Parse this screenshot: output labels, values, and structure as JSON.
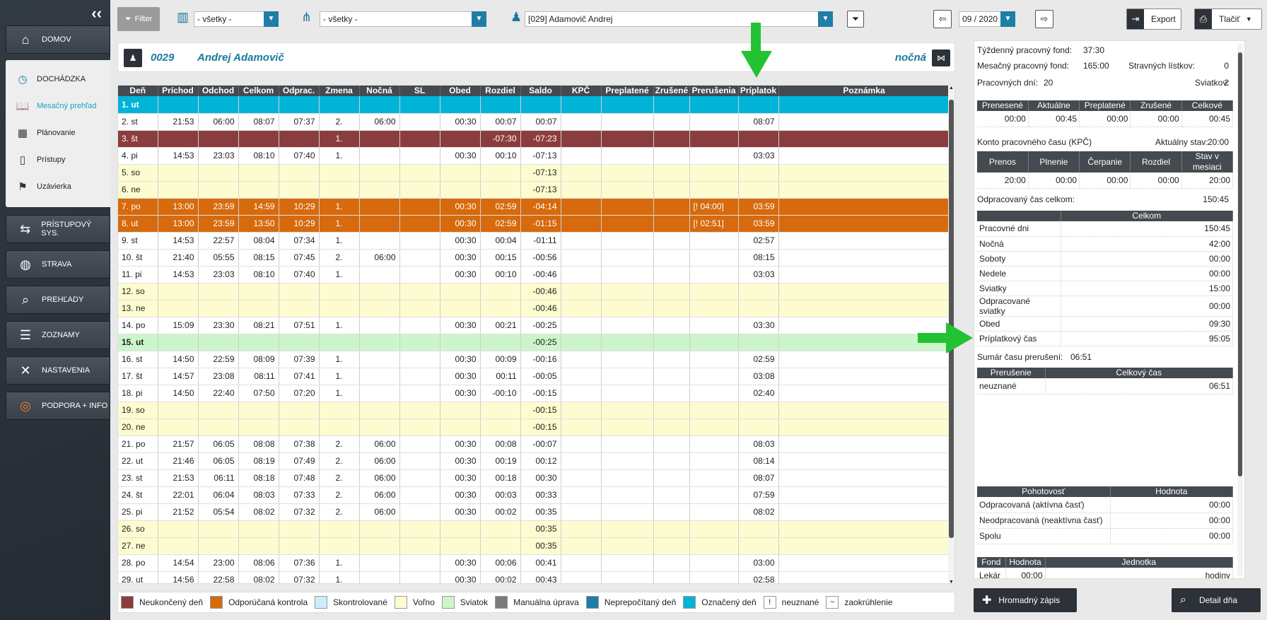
{
  "sidebar": {
    "nav": [
      {
        "label": "DOMOV",
        "icon": "home-icon"
      },
      {
        "label": "DOCHÁDZKA",
        "icon": "clock-icon"
      },
      {
        "label": "PRÍSTUPOVÝ SYS.",
        "icon": "handshake-icon"
      },
      {
        "label": "STRAVA",
        "icon": "plate-icon"
      },
      {
        "label": "PREHĽADY",
        "icon": "book-search-icon"
      },
      {
        "label": "ZOZNAMY",
        "icon": "list-icon"
      },
      {
        "label": "NASTAVENIA",
        "icon": "tools-icon"
      },
      {
        "label": "PODPORA + INFO",
        "icon": "lifebuoy-icon"
      }
    ],
    "sub": [
      {
        "label": "Mesačný prehľad",
        "icon": "book-icon"
      },
      {
        "label": "Plánovanie",
        "icon": "calendar-icon"
      },
      {
        "label": "Prístupy",
        "icon": "door-icon"
      },
      {
        "label": "Uzávierka",
        "icon": "flag-icon"
      }
    ]
  },
  "toolbar": {
    "filter_label": "Filter",
    "select1": "- všetky -",
    "select2": "- všetky -",
    "employee": "[029] Adamovič Andrej",
    "period": "09 / 2020",
    "export_label": "Export",
    "print_label": "Tlačiť"
  },
  "employee": {
    "number": "0029",
    "name": "Andrej Adamovič",
    "shift": "nočná"
  },
  "table": {
    "headers": [
      "Deň",
      "Príchod",
      "Odchod",
      "Celkom",
      "Odprac.",
      "Zmena",
      "Nočná",
      "SL",
      "Obed",
      "Rozdiel",
      "Saldo",
      "KPČ",
      "Preplatené",
      "Zrušené",
      "Prerušenia",
      "Príplatok",
      "Poznámka"
    ],
    "rows": [
      {
        "t": "marked",
        "c": [
          "1. ut",
          "",
          "",
          "",
          "",
          "",
          "",
          "",
          "",
          "",
          "",
          "",
          "",
          "",
          "",
          "",
          ""
        ]
      },
      {
        "t": "normal",
        "c": [
          "2. st",
          "21:53",
          "06:00",
          "08:07",
          "07:37",
          "2.",
          "06:00",
          "",
          "00:30",
          "00:07",
          "00:07",
          "",
          "",
          "",
          "",
          "08:07",
          ""
        ]
      },
      {
        "t": "unfinished",
        "c": [
          "3. št",
          "",
          "",
          "",
          "",
          "1.",
          "",
          "",
          "",
          "-07:30",
          "-07:23",
          "",
          "",
          "",
          "",
          "",
          ""
        ]
      },
      {
        "t": "normal",
        "c": [
          "4. pi",
          "14:53",
          "23:03",
          "08:10",
          "07:40",
          "1.",
          "",
          "",
          "00:30",
          "00:10",
          "-07:13",
          "",
          "",
          "",
          "",
          "03:03",
          ""
        ]
      },
      {
        "t": "free",
        "c": [
          "5. so",
          "",
          "",
          "",
          "",
          "",
          "",
          "",
          "",
          "",
          "-07:13",
          "",
          "",
          "",
          "",
          "",
          ""
        ]
      },
      {
        "t": "free",
        "c": [
          "6. ne",
          "",
          "",
          "",
          "",
          "",
          "",
          "",
          "",
          "",
          "-07:13",
          "",
          "",
          "",
          "",
          "",
          ""
        ]
      },
      {
        "t": "control",
        "c": [
          "7. po",
          "13:00",
          "23:59",
          "14:59",
          "10:29",
          "1.",
          "",
          "",
          "00:30",
          "02:59",
          "-04:14",
          "",
          "",
          "",
          "[! 04:00]",
          "03:59",
          ""
        ]
      },
      {
        "t": "control",
        "c": [
          "8. ut",
          "13:00",
          "23:59",
          "13:50",
          "10:29",
          "1.",
          "",
          "",
          "00:30",
          "02:59",
          "-01:15",
          "",
          "",
          "",
          "[! 02:51]",
          "03:59",
          ""
        ]
      },
      {
        "t": "normal",
        "c": [
          "9. st",
          "14:53",
          "22:57",
          "08:04",
          "07:34",
          "1.",
          "",
          "",
          "00:30",
          "00:04",
          "-01:11",
          "",
          "",
          "",
          "",
          "02:57",
          ""
        ]
      },
      {
        "t": "normal",
        "c": [
          "10. št",
          "21:40",
          "05:55",
          "08:15",
          "07:45",
          "2.",
          "06:00",
          "",
          "00:30",
          "00:15",
          "-00:56",
          "",
          "",
          "",
          "",
          "08:15",
          ""
        ]
      },
      {
        "t": "normal",
        "c": [
          "11. pi",
          "14:53",
          "23:03",
          "08:10",
          "07:40",
          "1.",
          "",
          "",
          "00:30",
          "00:10",
          "-00:46",
          "",
          "",
          "",
          "",
          "03:03",
          ""
        ]
      },
      {
        "t": "free",
        "c": [
          "12. so",
          "",
          "",
          "",
          "",
          "",
          "",
          "",
          "",
          "",
          "-00:46",
          "",
          "",
          "",
          "",
          "",
          ""
        ]
      },
      {
        "t": "free",
        "c": [
          "13. ne",
          "",
          "",
          "",
          "",
          "",
          "",
          "",
          "",
          "",
          "-00:46",
          "",
          "",
          "",
          "",
          "",
          ""
        ]
      },
      {
        "t": "normal",
        "c": [
          "14. po",
          "15:09",
          "23:30",
          "08:21",
          "07:51",
          "1.",
          "",
          "",
          "00:30",
          "00:21",
          "-00:25",
          "",
          "",
          "",
          "",
          "03:30",
          ""
        ]
      },
      {
        "t": "holiday",
        "c": [
          "15. ut",
          "",
          "",
          "",
          "",
          "",
          "",
          "",
          "",
          "",
          "-00:25",
          "",
          "",
          "",
          "",
          "",
          ""
        ]
      },
      {
        "t": "normal",
        "c": [
          "16. st",
          "14:50",
          "22:59",
          "08:09",
          "07:39",
          "1.",
          "",
          "",
          "00:30",
          "00:09",
          "-00:16",
          "",
          "",
          "",
          "",
          "02:59",
          ""
        ]
      },
      {
        "t": "normal",
        "c": [
          "17. št",
          "14:57",
          "23:08",
          "08:11",
          "07:41",
          "1.",
          "",
          "",
          "00:30",
          "00:11",
          "-00:05",
          "",
          "",
          "",
          "",
          "03:08",
          ""
        ]
      },
      {
        "t": "normal",
        "c": [
          "18. pi",
          "14:50",
          "22:40",
          "07:50",
          "07:20",
          "1.",
          "",
          "",
          "00:30",
          "-00:10",
          "-00:15",
          "",
          "",
          "",
          "",
          "02:40",
          ""
        ]
      },
      {
        "t": "free",
        "c": [
          "19. so",
          "",
          "",
          "",
          "",
          "",
          "",
          "",
          "",
          "",
          "-00:15",
          "",
          "",
          "",
          "",
          "",
          ""
        ]
      },
      {
        "t": "free",
        "c": [
          "20. ne",
          "",
          "",
          "",
          "",
          "",
          "",
          "",
          "",
          "",
          "-00:15",
          "",
          "",
          "",
          "",
          "",
          ""
        ]
      },
      {
        "t": "normal",
        "c": [
          "21. po",
          "21:57",
          "06:05",
          "08:08",
          "07:38",
          "2.",
          "06:00",
          "",
          "00:30",
          "00:08",
          "-00:07",
          "",
          "",
          "",
          "",
          "08:03",
          ""
        ]
      },
      {
        "t": "normal",
        "c": [
          "22. ut",
          "21:46",
          "06:05",
          "08:19",
          "07:49",
          "2.",
          "06:00",
          "",
          "00:30",
          "00:19",
          "00:12",
          "",
          "",
          "",
          "",
          "08:14",
          ""
        ]
      },
      {
        "t": "normal",
        "c": [
          "23. st",
          "21:53",
          "06:11",
          "08:18",
          "07:48",
          "2.",
          "06:00",
          "",
          "00:30",
          "00:18",
          "00:30",
          "",
          "",
          "",
          "",
          "08:07",
          ""
        ]
      },
      {
        "t": "normal",
        "c": [
          "24. št",
          "22:01",
          "06:04",
          "08:03",
          "07:33",
          "2.",
          "06:00",
          "",
          "00:30",
          "00:03",
          "00:33",
          "",
          "",
          "",
          "",
          "07:59",
          ""
        ]
      },
      {
        "t": "normal",
        "c": [
          "25. pi",
          "21:52",
          "05:54",
          "08:02",
          "07:32",
          "2.",
          "06:00",
          "",
          "00:30",
          "00:02",
          "00:35",
          "",
          "",
          "",
          "",
          "08:02",
          ""
        ]
      },
      {
        "t": "free",
        "c": [
          "26. so",
          "",
          "",
          "",
          "",
          "",
          "",
          "",
          "",
          "",
          "00:35",
          "",
          "",
          "",
          "",
          "",
          ""
        ]
      },
      {
        "t": "free",
        "c": [
          "27. ne",
          "",
          "",
          "",
          "",
          "",
          "",
          "",
          "",
          "",
          "00:35",
          "",
          "",
          "",
          "",
          "",
          ""
        ]
      },
      {
        "t": "normal",
        "c": [
          "28. po",
          "14:54",
          "23:00",
          "08:06",
          "07:36",
          "1.",
          "",
          "",
          "00:30",
          "00:06",
          "00:41",
          "",
          "",
          "",
          "",
          "03:00",
          ""
        ]
      },
      {
        "t": "normal",
        "c": [
          "29. ut",
          "14:56",
          "22:58",
          "08:02",
          "07:32",
          "1.",
          "",
          "",
          "00:30",
          "00:02",
          "00:43",
          "",
          "",
          "",
          "",
          "02:58",
          ""
        ]
      }
    ]
  },
  "legend": [
    {
      "label": "Neukončený deň",
      "color": "#8b3d3d"
    },
    {
      "label": "Odporúčaná kontrola",
      "color": "#d66a0d"
    },
    {
      "label": "Skontrolované",
      "color": "#cdeefa"
    },
    {
      "label": "Voľno",
      "color": "#fdfcd0"
    },
    {
      "label": "Sviatok",
      "color": "#ccf5cc"
    },
    {
      "label": "Manuálna úprava",
      "color": "#7a7a7a"
    },
    {
      "label": "Neprepočítaný deň",
      "color": "#1f7ea6"
    },
    {
      "label": "Označený deň",
      "color": "#00b4d8"
    },
    {
      "label": "neuznané",
      "symbol": "!"
    },
    {
      "label": "zaokrúhlenie",
      "symbol": "~"
    }
  ],
  "summary": {
    "weekly_fund_label": "Týždenný pracovný fond:",
    "weekly_fund": "37:30",
    "monthly_fund_label": "Mesačný pracovný fond:",
    "monthly_fund": "165:00",
    "meal_label": "Stravných lístkov:",
    "meal": "0",
    "workdays_label": "Pracovných dní:",
    "workdays": "20",
    "holidays_label": "Sviatkov:",
    "holidays": "2",
    "balance_headers": [
      "Prenesené",
      "Aktuálne",
      "Preplatené",
      "Zrušené",
      "Celkové"
    ],
    "balance_values": [
      "00:00",
      "00:45",
      "00:00",
      "00:00",
      "00:45"
    ],
    "kpc_label": "Konto pracovného času (KPČ)",
    "kpc_state_label": "Aktuálny stav:",
    "kpc_state": "20:00",
    "kpc_headers": [
      "Prenos",
      "Plnenie",
      "Čerpanie",
      "Rozdiel",
      "Stav v mesiaci"
    ],
    "kpc_values": [
      "20:00",
      "00:00",
      "00:00",
      "00:00",
      "20:00"
    ],
    "worked_total_label": "Odpracovaný čas celkom:",
    "worked_total": "150:45",
    "totals_header": "Celkom",
    "totals": [
      [
        "Pracovné dni",
        "150:45"
      ],
      [
        "Nočná",
        "42:00"
      ],
      [
        "Soboty",
        "00:00"
      ],
      [
        "Nedele",
        "00:00"
      ],
      [
        "Sviatky",
        "15:00"
      ],
      [
        "Odpracované sviatky",
        "00:00"
      ],
      [
        "Obed",
        "09:30"
      ],
      [
        "Príplatkový čas",
        "95:05"
      ]
    ],
    "breaks_label": "Sumár času prerušení:",
    "breaks_total": "06:51",
    "breaks_headers": [
      "Prerušenie",
      "Celkový čas"
    ],
    "breaks_rows": [
      [
        "neuznané",
        "06:51"
      ]
    ],
    "standby_headers": [
      "Pohotovosť",
      "Hodnota"
    ],
    "standby_rows": [
      [
        "Odpracovaná (aktívna časť)",
        "00:00"
      ],
      [
        "Neodpracovaná (neaktívna časť)",
        "00:00"
      ],
      [
        "Spolu",
        "00:00"
      ]
    ],
    "fond_headers": [
      "Fond",
      "Hodnota",
      "Jednotka"
    ],
    "fond_rows": [
      [
        "Lekár",
        "00:00",
        "hodiny"
      ]
    ]
  },
  "bottom": {
    "bulk_label": "Hromadný zápis",
    "detail_label": "Detail dňa"
  }
}
